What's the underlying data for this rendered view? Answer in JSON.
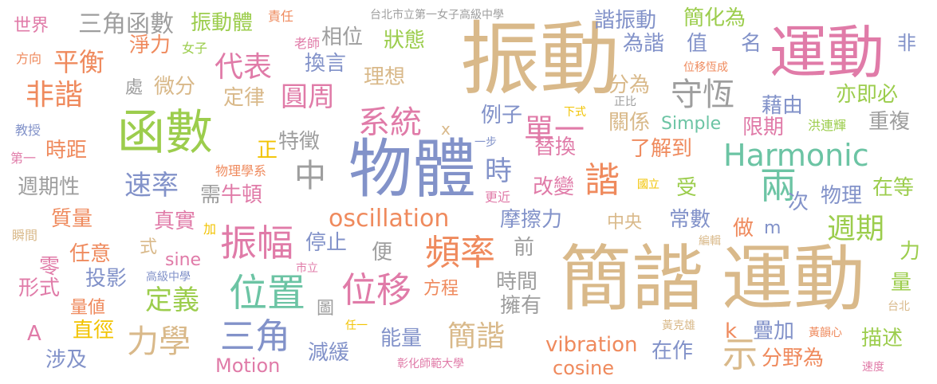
{
  "colors": {
    "tan": "#d9b98a",
    "pink": "#e07ba8",
    "green": "#9ccd4d",
    "blue": "#8292c9",
    "gray": "#9e9e9e",
    "orange": "#ef8a5d",
    "yellow": "#f2c300",
    "teal": "#6cc4a4"
  },
  "words": [
    {
      "text": "振動",
      "color": "tan"
    },
    {
      "text": "運動",
      "color": "pink"
    },
    {
      "text": "簡諧",
      "color": "tan"
    },
    {
      "text": "運動",
      "color": "tan"
    },
    {
      "text": "物體",
      "color": "blue"
    },
    {
      "text": "函數",
      "color": "green"
    },
    {
      "text": "Harmonic",
      "color": "teal"
    },
    {
      "text": "oscillation",
      "color": "orange"
    },
    {
      "text": "頻率",
      "color": "orange"
    },
    {
      "text": "振幅",
      "color": "pink"
    },
    {
      "text": "位置",
      "color": "teal"
    },
    {
      "text": "位移",
      "color": "pink"
    },
    {
      "text": "中",
      "color": "gray"
    },
    {
      "text": "諧",
      "color": "orange"
    },
    {
      "text": "兩",
      "color": "teal"
    },
    {
      "text": "世界",
      "color": "pink"
    },
    {
      "text": "三角函數",
      "color": "gray"
    },
    {
      "text": "振動體",
      "color": "green"
    },
    {
      "text": "責任",
      "color": "orange"
    },
    {
      "text": "老師",
      "color": "pink"
    },
    {
      "text": "台北市立第一女子高級中學",
      "color": "gray"
    },
    {
      "text": "諧振動",
      "color": "blue"
    },
    {
      "text": "簡化為",
      "color": "green"
    },
    {
      "text": "非",
      "color": "blue"
    },
    {
      "text": "方向",
      "color": "orange"
    },
    {
      "text": "平衡",
      "color": "orange"
    },
    {
      "text": "淨力",
      "color": "orange"
    },
    {
      "text": "女子",
      "color": "green"
    },
    {
      "text": "相位",
      "color": "gray"
    },
    {
      "text": "狀態",
      "color": "green"
    },
    {
      "text": "為諧",
      "color": "blue"
    },
    {
      "text": "值",
      "color": "blue"
    },
    {
      "text": "名",
      "color": "blue"
    },
    {
      "text": "代表",
      "color": "pink"
    },
    {
      "text": "換言",
      "color": "blue"
    },
    {
      "text": "理想",
      "color": "tan"
    },
    {
      "text": "位移恆成",
      "color": "orange"
    },
    {
      "text": "非諧",
      "color": "orange"
    },
    {
      "text": "處",
      "color": "gray"
    },
    {
      "text": "微分",
      "color": "tan"
    },
    {
      "text": "定律",
      "color": "tan"
    },
    {
      "text": "圓周",
      "color": "pink"
    },
    {
      "text": "分為",
      "color": "tan"
    },
    {
      "text": "守恆",
      "color": "gray"
    },
    {
      "text": "下式",
      "color": "yellow"
    },
    {
      "text": "正比",
      "color": "gray"
    },
    {
      "text": "藉由",
      "color": "blue"
    },
    {
      "text": "亦即必",
      "color": "green"
    },
    {
      "text": "例子",
      "color": "blue"
    },
    {
      "text": "系統",
      "color": "pink"
    },
    {
      "text": "單一",
      "color": "pink"
    },
    {
      "text": "關係",
      "color": "tan"
    },
    {
      "text": "Simple",
      "color": "teal"
    },
    {
      "text": "限期",
      "color": "pink"
    },
    {
      "text": "重複",
      "color": "gray"
    },
    {
      "text": "教授",
      "color": "blue"
    },
    {
      "text": "x",
      "color": "tan"
    },
    {
      "text": "洪連輝",
      "color": "green"
    },
    {
      "text": "特徵",
      "color": "gray"
    },
    {
      "text": "一步",
      "color": "blue"
    },
    {
      "text": "替換",
      "color": "pink"
    },
    {
      "text": "了解到",
      "color": "orange"
    },
    {
      "text": "第一",
      "color": "pink"
    },
    {
      "text": "時距",
      "color": "orange"
    },
    {
      "text": "正",
      "color": "yellow"
    },
    {
      "text": "時",
      "color": "blue"
    },
    {
      "text": "物理學系",
      "color": "orange"
    },
    {
      "text": "週期性",
      "color": "gray"
    },
    {
      "text": "速率",
      "color": "blue"
    },
    {
      "text": "需",
      "color": "gray"
    },
    {
      "text": "牛頓",
      "color": "pink"
    },
    {
      "text": "改變",
      "color": "pink"
    },
    {
      "text": "國立",
      "color": "yellow"
    },
    {
      "text": "受",
      "color": "green"
    },
    {
      "text": "次",
      "color": "blue"
    },
    {
      "text": "物理",
      "color": "blue"
    },
    {
      "text": "在等",
      "color": "green"
    },
    {
      "text": "更近",
      "color": "pink"
    },
    {
      "text": "質量",
      "color": "orange"
    },
    {
      "text": "真實",
      "color": "pink"
    },
    {
      "text": "摩擦力",
      "color": "blue"
    },
    {
      "text": "中央",
      "color": "tan"
    },
    {
      "text": "常數",
      "color": "blue"
    },
    {
      "text": "做",
      "color": "orange"
    },
    {
      "text": "m",
      "color": "blue"
    },
    {
      "text": "週期",
      "color": "green"
    },
    {
      "text": "瞬間",
      "color": "tan"
    },
    {
      "text": "加",
      "color": "yellow"
    },
    {
      "text": "停止",
      "color": "blue"
    },
    {
      "text": "編輯",
      "color": "tan"
    },
    {
      "text": "式",
      "color": "tan"
    },
    {
      "text": "前",
      "color": "gray"
    },
    {
      "text": "力",
      "color": "green"
    },
    {
      "text": "零",
      "color": "pink"
    },
    {
      "text": "任意",
      "color": "orange"
    },
    {
      "text": "sine",
      "color": "pink"
    },
    {
      "text": "便",
      "color": "gray"
    },
    {
      "text": "市立",
      "color": "pink"
    },
    {
      "text": "投影",
      "color": "blue"
    },
    {
      "text": "高級中學",
      "color": "blue"
    },
    {
      "text": "形式",
      "color": "pink"
    },
    {
      "text": "定義",
      "color": "green"
    },
    {
      "text": "時間",
      "color": "gray"
    },
    {
      "text": "量",
      "color": "green"
    },
    {
      "text": "量値",
      "color": "orange"
    },
    {
      "text": "方程",
      "color": "orange"
    },
    {
      "text": "擁有",
      "color": "gray"
    },
    {
      "text": "圖",
      "color": "gray"
    },
    {
      "text": "台北",
      "color": "tan"
    },
    {
      "text": "A",
      "color": "pink"
    },
    {
      "text": "直徑",
      "color": "yellow"
    },
    {
      "text": "力學",
      "color": "tan"
    },
    {
      "text": "三角",
      "color": "blue"
    },
    {
      "text": "任一",
      "color": "yellow"
    },
    {
      "text": "能量",
      "color": "blue"
    },
    {
      "text": "簡諧",
      "color": "tan"
    },
    {
      "text": "黃克雄",
      "color": "tan"
    },
    {
      "text": "k",
      "color": "orange"
    },
    {
      "text": "疊加",
      "color": "blue"
    },
    {
      "text": "黃韻心",
      "color": "orange"
    },
    {
      "text": "描述",
      "color": "green"
    },
    {
      "text": "減緩",
      "color": "blue"
    },
    {
      "text": "vibration",
      "color": "orange"
    },
    {
      "text": "在作",
      "color": "blue"
    },
    {
      "text": "示",
      "color": "tan"
    },
    {
      "text": "分野為",
      "color": "orange"
    },
    {
      "text": "涉及",
      "color": "blue"
    },
    {
      "text": "Motion",
      "color": "pink"
    },
    {
      "text": "彰化師範大學",
      "color": "pink"
    },
    {
      "text": "cosine",
      "color": "orange"
    },
    {
      "text": "速度",
      "color": "pink"
    }
  ]
}
